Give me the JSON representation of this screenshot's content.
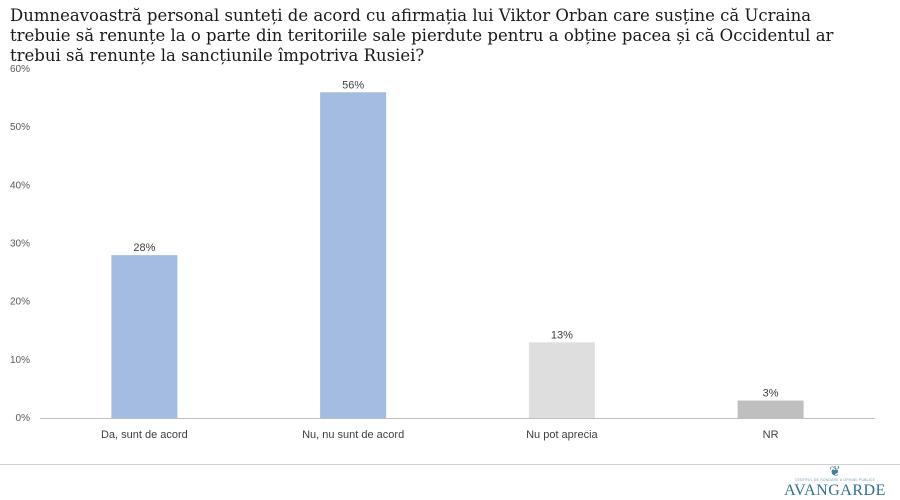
{
  "title": "Dumneavoastră personal sunteți de acord cu afirmația lui Viktor Orban care susține că Ucraina trebuie să renunțe la o parte din teritoriile sale pierdute pentru a obține pacea și că Occidentul ar trebui să renunțe la sancțiunile împotriva Rusiei?",
  "brand": {
    "name": "AVANGARDE",
    "tagline": "CENTRUL DE SONDARE A OPINIEI PUBLICE",
    "color": "#2f6f91"
  },
  "chart_data": {
    "type": "bar",
    "title": "Dumneavoastră personal sunteți de acord cu afirmația lui Viktor Orban care susține că Ucraina trebuie să renunțe la o parte din teritoriile sale pierdute pentru a obține pacea și că Occidentul ar trebui să renunțe la sancțiunile împotriva Rusiei?",
    "categories": [
      "Da, sunt de acord",
      "Nu, nu sunt de acord",
      "Nu pot aprecia",
      "NR"
    ],
    "values": [
      28,
      56,
      13,
      3
    ],
    "data_labels": [
      "28%",
      "56%",
      "13%",
      "3%"
    ],
    "colors": [
      "#a4bbe2",
      "#a4bbe2",
      "#dedede",
      "#bfbfbf"
    ],
    "y_ticks": [
      "0%",
      "10%",
      "20%",
      "30%",
      "40%",
      "50%",
      "60%"
    ],
    "ylim": [
      0,
      60
    ],
    "grid": false,
    "legend": "none"
  }
}
